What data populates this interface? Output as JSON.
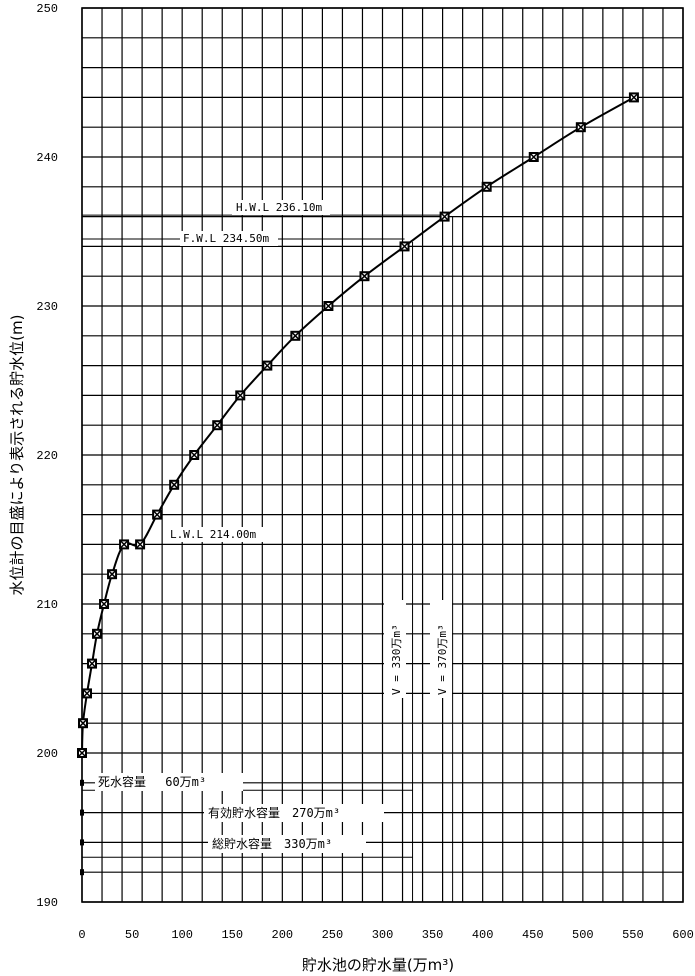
{
  "chart_data": {
    "type": "line",
    "xlabel": "貯水池の貯水量(万m³)",
    "ylabel": "水位計の目盛により表示される貯水位(m)",
    "xlim": [
      0,
      600
    ],
    "ylim": [
      190,
      250
    ],
    "x_ticks": [
      "0",
      "50",
      "100",
      "150",
      "200",
      "250",
      "300",
      "350",
      "400",
      "450",
      "500",
      "550",
      "600"
    ],
    "y_ticks": [
      "190",
      "200",
      "210",
      "220",
      "230",
      "240",
      "250"
    ],
    "grid": true,
    "series": [
      {
        "x": [
          0,
          1,
          5,
          10,
          15,
          22,
          30,
          42,
          58,
          75,
          92,
          112,
          135,
          158,
          185,
          213,
          246,
          282,
          322,
          362,
          404,
          451,
          498,
          551
        ],
        "y": [
          200,
          202,
          204,
          206,
          208,
          210,
          212,
          214,
          214,
          216,
          218,
          220,
          222,
          224,
          226,
          228,
          230,
          232,
          234,
          236,
          238,
          240,
          242,
          244
        ]
      }
    ],
    "annotations": {
      "hwl": "H.W.L 236.10m",
      "fwl": "F.W.L 234.50m",
      "lwl": "L.W.L 214.00m",
      "v330": "V = 330万m³",
      "v370": "V = 370万m³",
      "dead": "死水容量　 60万m³",
      "effective": "有効貯水容量　270万m³",
      "total": "総貯水容量　330万m³"
    }
  }
}
